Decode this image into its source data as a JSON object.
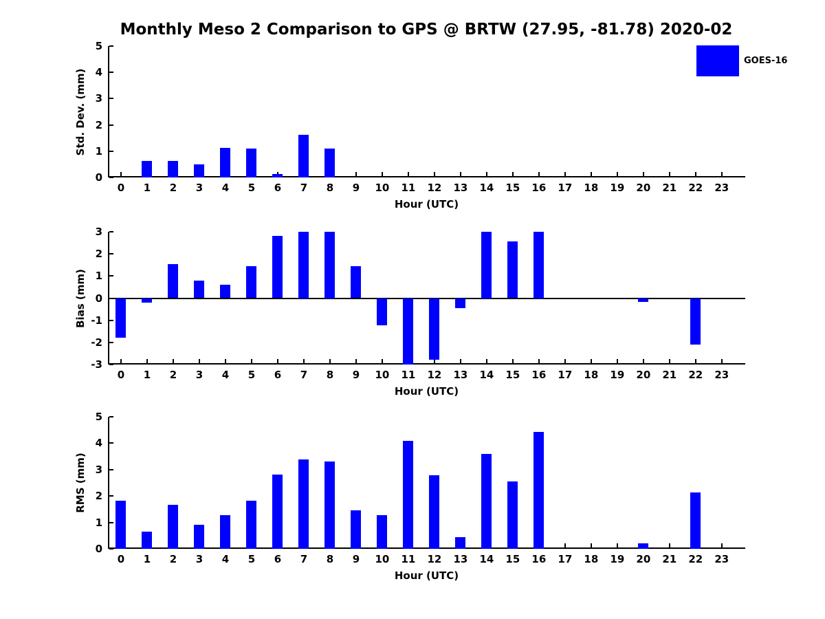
{
  "figure": {
    "title": "Monthly Meso 2 Comparison to GPS @ BRTW (27.95, -81.78) 2020-02"
  },
  "legend": {
    "position": "upper right",
    "entries": [
      {
        "label": "GOES-16",
        "color": "#0000FF"
      }
    ]
  },
  "colors": {
    "bar": "#0000FF",
    "axis": "#000000",
    "background": "#FFFFFF",
    "text": "#000000"
  },
  "chart_data": [
    {
      "type": "bar",
      "title": "",
      "categories": [
        "0",
        "1",
        "2",
        "3",
        "4",
        "5",
        "6",
        "7",
        "8",
        "9",
        "10",
        "11",
        "12",
        "13",
        "14",
        "15",
        "16",
        "17",
        "18",
        "19",
        "20",
        "21",
        "22",
        "23"
      ],
      "series": [
        {
          "name": "GOES-16",
          "values": [
            0,
            0.62,
            0.64,
            0.5,
            1.13,
            1.11,
            0.13,
            1.61,
            1.09,
            0,
            0,
            0,
            0,
            0,
            0,
            0,
            0,
            0,
            0,
            0,
            0,
            0,
            0,
            0
          ]
        }
      ],
      "xlabel": "Hour (UTC)",
      "ylabel": "Std. Dev. (mm)",
      "ylim": [
        0,
        5
      ],
      "yticks": [
        0,
        1,
        2,
        3,
        4,
        5
      ],
      "grid": false,
      "bar_color": "#0000FF"
    },
    {
      "type": "bar",
      "title": "",
      "categories": [
        "0",
        "1",
        "2",
        "3",
        "4",
        "5",
        "6",
        "7",
        "8",
        "9",
        "10",
        "11",
        "12",
        "13",
        "14",
        "15",
        "16",
        "17",
        "18",
        "19",
        "20",
        "21",
        "22",
        "23"
      ],
      "series": [
        {
          "name": "GOES-16",
          "values": [
            -1.78,
            -0.21,
            1.55,
            0.8,
            0.61,
            1.45,
            2.82,
            3.0,
            3.0,
            1.45,
            -1.22,
            -3.0,
            -2.78,
            -0.44,
            3.0,
            2.56,
            3.0,
            0,
            0,
            0,
            -0.16,
            0,
            -2.1,
            0
          ]
        }
      ],
      "xlabel": "Hour (UTC)",
      "ylabel": "Bias (mm)",
      "ylim": [
        -3,
        3
      ],
      "yticks": [
        -3,
        -2,
        -1,
        0,
        1,
        2,
        3
      ],
      "zero_line": true,
      "grid": false,
      "bar_color": "#0000FF"
    },
    {
      "type": "bar",
      "title": "",
      "categories": [
        "0",
        "1",
        "2",
        "3",
        "4",
        "5",
        "6",
        "7",
        "8",
        "9",
        "10",
        "11",
        "12",
        "13",
        "14",
        "15",
        "16",
        "17",
        "18",
        "19",
        "20",
        "21",
        "22",
        "23"
      ],
      "series": [
        {
          "name": "GOES-16",
          "values": [
            1.82,
            0.65,
            1.66,
            0.91,
            1.28,
            1.83,
            2.8,
            3.38,
            3.32,
            1.46,
            1.27,
            4.08,
            2.78,
            0.45,
            3.59,
            2.54,
            4.42,
            0,
            0,
            0,
            0.2,
            0,
            2.13,
            0
          ]
        }
      ],
      "xlabel": "Hour (UTC)",
      "ylabel": "RMS (mm)",
      "ylim": [
        0,
        5
      ],
      "yticks": [
        0,
        1,
        2,
        3,
        4,
        5
      ],
      "grid": false,
      "bar_color": "#0000FF"
    }
  ]
}
